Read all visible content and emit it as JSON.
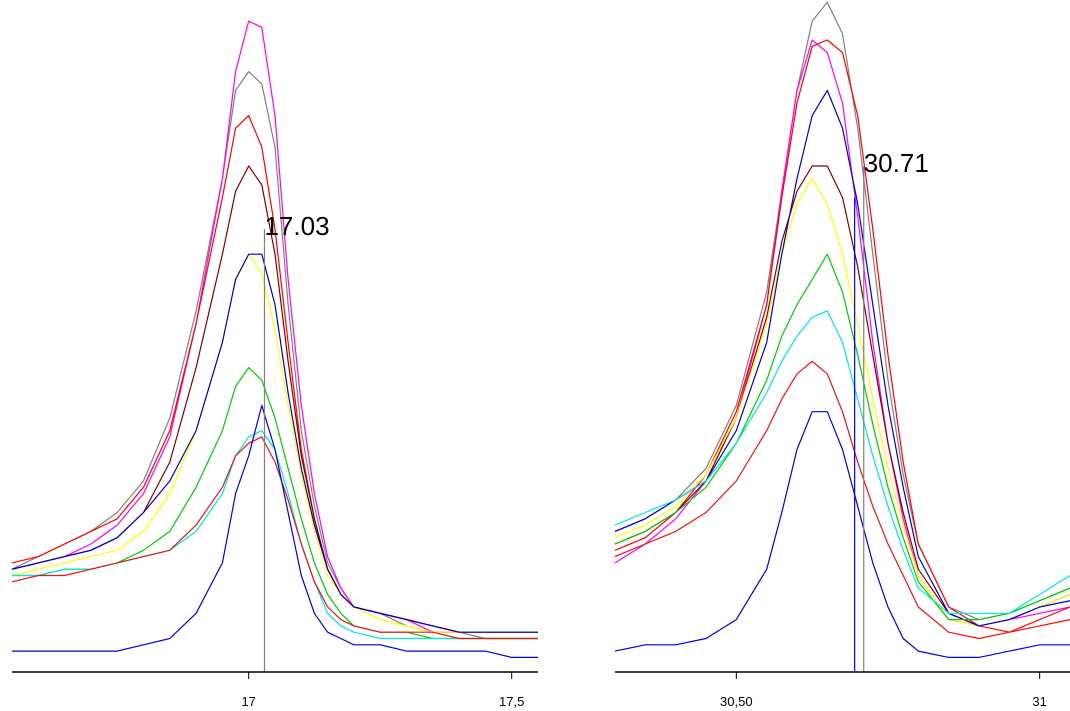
{
  "chart_data": [
    {
      "type": "line",
      "xlim": [
        16.55,
        17.55
      ],
      "ylim": [
        0,
        100
      ],
      "grid": false,
      "legend": "none",
      "ticks": [
        {
          "value": 17,
          "label": "17"
        },
        {
          "value": 17.5,
          "label": "17,5"
        }
      ],
      "markers": [
        {
          "x": 17.03,
          "color": "#808080",
          "label": "17.03",
          "y_top": 70,
          "show_label": true
        }
      ],
      "x": [
        16.55,
        16.6,
        16.65,
        16.7,
        16.75,
        16.8,
        16.85,
        16.9,
        16.95,
        16.975,
        17,
        17.025,
        17.05,
        17.075,
        17.1,
        17.125,
        17.15,
        17.175,
        17.2,
        17.25,
        17.3,
        17.35,
        17.4,
        17.45,
        17.5,
        17.55
      ],
      "series": [
        {
          "color": "#808080",
          "values": [
            16,
            18,
            20,
            22,
            25,
            30,
            40,
            57,
            78,
            92,
            95,
            93,
            83,
            58,
            38,
            26,
            17,
            13,
            10,
            9,
            7,
            6,
            6,
            5,
            5,
            5
          ]
        },
        {
          "color": "#ff00ff",
          "values": [
            16,
            17,
            18,
            20,
            23,
            28,
            37,
            55,
            78,
            95,
            103,
            102,
            88,
            62,
            42,
            28,
            18,
            13,
            10,
            9,
            8,
            6,
            6,
            6,
            6,
            6
          ]
        },
        {
          "color": "#ff0000",
          "values": [
            17,
            18,
            20,
            22,
            24,
            29,
            38,
            55,
            75,
            86,
            88,
            83,
            70,
            52,
            35,
            24,
            16,
            12,
            10,
            9,
            8,
            7,
            6,
            6,
            6,
            6
          ]
        },
        {
          "color": "#800000",
          "values": [
            16,
            17,
            18,
            19,
            21,
            25,
            33,
            48,
            66,
            76,
            80,
            77,
            66,
            49,
            34,
            24,
            16,
            12,
            10,
            9,
            8,
            7,
            6,
            6,
            6,
            6
          ]
        },
        {
          "color": "#ffff00",
          "values": [
            15,
            16,
            17,
            18,
            19,
            22,
            28,
            38,
            52,
            62,
            66,
            63,
            54,
            42,
            31,
            22,
            15,
            12,
            10,
            8,
            7,
            6,
            6,
            6,
            6,
            6
          ]
        },
        {
          "color": "#0000bb",
          "values": [
            16,
            17,
            18,
            19,
            21,
            25,
            30,
            38,
            52,
            62,
            66,
            66,
            58,
            44,
            32,
            23,
            16,
            12,
            10,
            9,
            8,
            7,
            6,
            6,
            6,
            6
          ]
        },
        {
          "color": "#00cc00",
          "values": [
            15,
            15,
            16,
            16,
            17,
            19,
            22,
            29,
            38,
            45,
            48,
            46,
            40,
            32,
            24,
            17,
            12,
            9,
            7,
            6,
            6,
            5,
            5,
            5,
            5,
            5
          ]
        },
        {
          "color": "#00e5e5",
          "values": [
            15,
            15,
            16,
            16,
            17,
            18,
            19,
            22,
            28,
            34,
            37,
            38,
            35,
            28,
            20,
            14,
            9,
            7,
            6,
            5,
            5,
            5,
            5,
            5,
            5,
            5
          ]
        },
        {
          "color": "#ee1111",
          "values": [
            14,
            15,
            15,
            16,
            17,
            18,
            19,
            23,
            29,
            34,
            36,
            37,
            33,
            27,
            20,
            14,
            10,
            8,
            7,
            6,
            6,
            6,
            5,
            5,
            5,
            5
          ]
        },
        {
          "color": "#0000dd",
          "values": [
            3,
            3,
            3,
            3,
            3,
            4,
            5,
            9,
            17,
            28,
            34,
            42,
            35,
            25,
            15,
            9,
            6,
            5,
            4,
            4,
            3,
            3,
            3,
            3,
            2,
            2
          ]
        }
      ]
    },
    {
      "type": "line",
      "xlim": [
        30.3,
        31.05
      ],
      "ylim": [
        0,
        100
      ],
      "grid": false,
      "legend": "none",
      "ticks": [
        {
          "value": 30.5,
          "label": "30,50"
        },
        {
          "value": 31,
          "label": "31"
        }
      ],
      "markers": [
        {
          "x": 30.71,
          "color": "#808080",
          "label": "30.71",
          "y_top": 80,
          "show_label": true
        },
        {
          "x": 30.695,
          "color": "#0000ff",
          "label": "",
          "y_top": 75,
          "show_label": false
        }
      ],
      "x": [
        30.3,
        30.35,
        30.4,
        30.45,
        30.5,
        30.55,
        30.575,
        30.6,
        30.625,
        30.65,
        30.675,
        30.7,
        30.725,
        30.75,
        30.775,
        30.8,
        30.85,
        30.9,
        30.95,
        31,
        31.05
      ],
      "series": [
        {
          "color": "#808080",
          "values": [
            22,
            24,
            27,
            32,
            42,
            60,
            76,
            92,
            103,
            106,
            101,
            86,
            66,
            46,
            31,
            20,
            10,
            8,
            9,
            11,
            13
          ]
        },
        {
          "color": "#ff00ff",
          "values": [
            17,
            20,
            24,
            30,
            40,
            58,
            76,
            92,
            100,
            98,
            90,
            72,
            52,
            36,
            24,
            15,
            8,
            7,
            8,
            9,
            10
          ]
        },
        {
          "color": "#ff0000",
          "values": [
            19,
            21,
            25,
            31,
            41,
            58,
            75,
            90,
            99,
            100,
            98,
            88,
            70,
            50,
            33,
            20,
            10,
            7,
            6,
            7,
            8
          ]
        },
        {
          "color": "#800000",
          "values": [
            20,
            22,
            25,
            30,
            40,
            56,
            68,
            76,
            80,
            80,
            75,
            64,
            50,
            36,
            25,
            16,
            9,
            7,
            8,
            10,
            12
          ]
        },
        {
          "color": "#ffff00",
          "values": [
            21,
            23,
            26,
            31,
            40,
            55,
            66,
            74,
            78,
            74,
            66,
            55,
            43,
            32,
            23,
            15,
            8,
            7,
            8,
            10,
            12
          ]
        },
        {
          "color": "#0000cc",
          "values": [
            22,
            24,
            27,
            30,
            38,
            52,
            66,
            78,
            88,
            92,
            86,
            74,
            58,
            42,
            29,
            18,
            9,
            7,
            8,
            10,
            11
          ]
        },
        {
          "color": "#00cc00",
          "values": [
            20,
            22,
            25,
            29,
            36,
            46,
            53,
            58,
            62,
            66,
            60,
            50,
            39,
            29,
            21,
            14,
            8,
            8,
            9,
            11,
            13
          ]
        },
        {
          "color": "#00e5e5",
          "values": [
            23,
            25,
            27,
            30,
            36,
            44,
            49,
            53,
            56,
            57,
            52,
            43,
            34,
            26,
            19,
            13,
            9,
            9,
            9,
            12,
            15
          ]
        },
        {
          "color": "#ee1111",
          "values": [
            18,
            20,
            22,
            25,
            30,
            38,
            43,
            47,
            49,
            47,
            41,
            33,
            26,
            20,
            15,
            10,
            6,
            5,
            6,
            8,
            10
          ]
        },
        {
          "color": "#0000dd",
          "values": [
            3,
            4,
            4,
            5,
            8,
            16,
            25,
            35,
            41,
            41,
            35,
            26,
            17,
            10,
            5,
            3,
            2,
            2,
            3,
            4,
            4
          ]
        }
      ]
    }
  ]
}
